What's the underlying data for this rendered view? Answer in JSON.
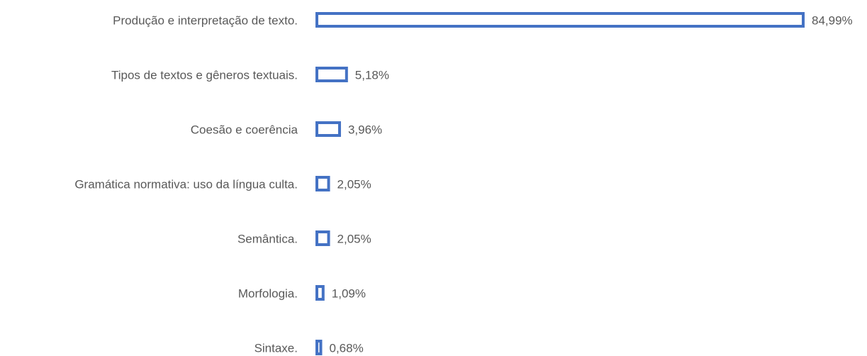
{
  "chart_data": {
    "type": "bar",
    "orientation": "horizontal",
    "categories": [
      "Produção e interpretação de texto.",
      "Tipos de textos e gêneros textuais.",
      "Coesão e coerência",
      "Gramática normativa: uso da língua culta.",
      "Semântica.",
      "Morfologia.",
      "Sintaxe."
    ],
    "values": [
      84.99,
      5.18,
      3.96,
      2.05,
      2.05,
      1.09,
      0.68
    ],
    "value_labels": [
      "84,99%",
      "5,18%",
      "3,96%",
      "2,05%",
      "2,05%",
      "1,09%",
      "0,68%"
    ],
    "color": "#4472c4"
  }
}
